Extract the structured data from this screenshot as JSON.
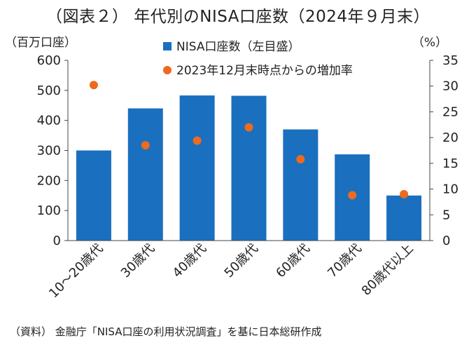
{
  "title": "（図表２） 年代別のNISA口座数（2024年９月末）",
  "source": "（資料） 金融庁「NISA口座の利用状況調査」を基に日本総研作成",
  "chart_data": {
    "type": "bar",
    "categories": [
      "10～20歳代",
      "30歳代",
      "40歳代",
      "50歳代",
      "60歳代",
      "70歳代",
      "80歳代以上"
    ],
    "series": [
      {
        "name": "NISA口座数（左目盛）",
        "type": "bar",
        "axis": "left",
        "values": [
          300,
          440,
          483,
          482,
          370,
          287,
          150
        ]
      },
      {
        "name": "2023年12月末時点からの増加率",
        "type": "scatter",
        "axis": "right",
        "values": [
          30.2,
          18.5,
          19.4,
          22.0,
          15.8,
          8.8,
          9.0
        ]
      }
    ],
    "left_axis": {
      "unit_label": "（百万口座）",
      "ylim": [
        0,
        600
      ],
      "ticks": [
        0,
        100,
        200,
        300,
        400,
        500,
        600
      ]
    },
    "right_axis": {
      "unit_label": "（%）",
      "ylim": [
        0,
        35
      ],
      "ticks": [
        0,
        5,
        10,
        15,
        20,
        25,
        30,
        35
      ]
    },
    "legend_placement": "top-center",
    "grid": false,
    "colors": {
      "bar": "#1a6fbf",
      "marker": "#ee6a1e",
      "axis": "#444444"
    }
  }
}
